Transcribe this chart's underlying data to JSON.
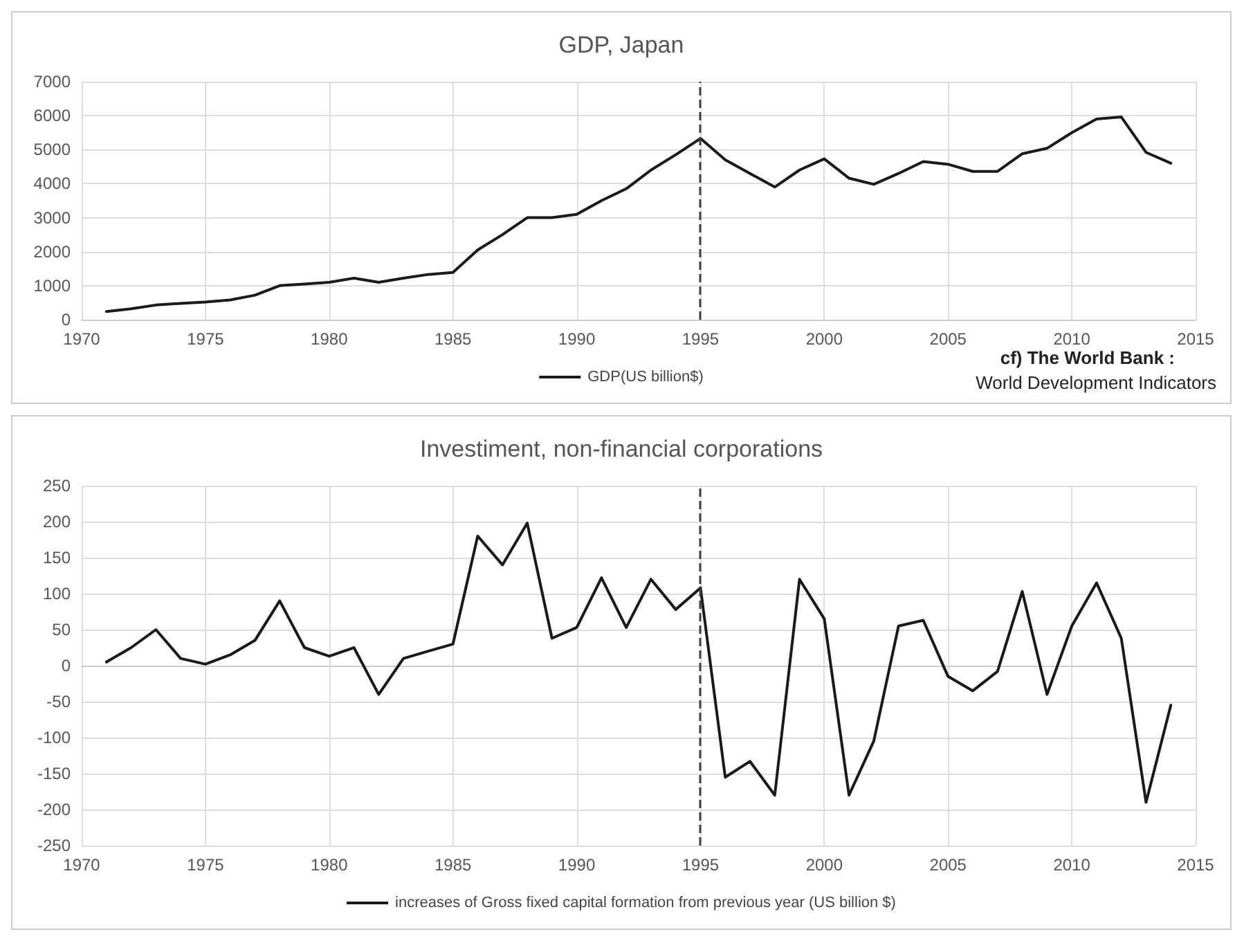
{
  "chart_data": [
    {
      "type": "line",
      "title": "GDP, Japan",
      "x": [
        1971,
        1972,
        1973,
        1974,
        1975,
        1976,
        1977,
        1978,
        1979,
        1980,
        1981,
        1982,
        1983,
        1984,
        1985,
        1986,
        1987,
        1988,
        1989,
        1990,
        1991,
        1992,
        1993,
        1994,
        1995,
        1996,
        1997,
        1998,
        1999,
        2000,
        2001,
        2002,
        2003,
        2004,
        2005,
        2006,
        2007,
        2008,
        2009,
        2010,
        2011,
        2012,
        2013,
        2014
      ],
      "series": [
        {
          "name": "GDP(US billion$)",
          "color": "#1a1a1a",
          "values": [
            240,
            320,
            430,
            480,
            520,
            580,
            720,
            1000,
            1050,
            1100,
            1220,
            1100,
            1220,
            1330,
            1390,
            2050,
            2500,
            3000,
            3000,
            3100,
            3500,
            3850,
            4400,
            4850,
            5330,
            4700,
            4300,
            3900,
            4400,
            4730,
            4160,
            3980,
            4300,
            4650,
            4570,
            4360,
            4360,
            4880,
            5040,
            5500,
            5900,
            5960,
            4920,
            4600
          ]
        }
      ],
      "xlim": [
        1970,
        2015
      ],
      "xticks": [
        1970,
        1975,
        1980,
        1985,
        1990,
        1995,
        2000,
        2005,
        2010,
        2015
      ],
      "ylim": [
        0,
        7000
      ],
      "yticks": [
        0,
        1000,
        2000,
        3000,
        4000,
        5000,
        6000,
        7000
      ],
      "grid": true,
      "legend": "bottom",
      "marker": "none",
      "line_style": "solid",
      "ref_lines": [
        {
          "axis": "x",
          "value": 1995,
          "color": "#404040",
          "line_style": "dashed"
        }
      ],
      "annotations": [
        "cf) The World Bank :",
        "World Development Indicators"
      ]
    },
    {
      "type": "line",
      "title": "Investiment, non-financial corporations",
      "x": [
        1971,
        1972,
        1973,
        1974,
        1975,
        1976,
        1977,
        1978,
        1979,
        1980,
        1981,
        1982,
        1983,
        1984,
        1985,
        1986,
        1987,
        1988,
        1989,
        1990,
        1991,
        1992,
        1993,
        1994,
        1995,
        1996,
        1997,
        1998,
        1999,
        2000,
        2001,
        2002,
        2003,
        2004,
        2005,
        2006,
        2007,
        2008,
        2009,
        2010,
        2011,
        2012,
        2013,
        2014
      ],
      "series": [
        {
          "name": "increases of Gross fixed capital formation from previous year (US billion $)",
          "color": "#1a1a1a",
          "values": [
            5,
            25,
            50,
            10,
            2,
            15,
            35,
            90,
            25,
            13,
            25,
            -40,
            10,
            20,
            30,
            180,
            140,
            198,
            38,
            53,
            122,
            53,
            120,
            78,
            108,
            -155,
            -133,
            -180,
            120,
            65,
            -180,
            -105,
            55,
            63,
            -15,
            -35,
            -8,
            103,
            -40,
            55,
            115,
            38,
            -190,
            -55
          ]
        }
      ],
      "xlim": [
        1970,
        2015
      ],
      "xticks": [
        1970,
        1975,
        1980,
        1985,
        1990,
        1995,
        2000,
        2005,
        2010,
        2015
      ],
      "ylim": [
        -250,
        250
      ],
      "yticks": [
        -250,
        -200,
        -150,
        -100,
        -50,
        0,
        50,
        100,
        150,
        200,
        250
      ],
      "grid": true,
      "legend": "bottom",
      "marker": "none",
      "line_style": "solid",
      "ref_lines": [
        {
          "axis": "x",
          "value": 1995,
          "color": "#404040",
          "line_style": "dashed"
        }
      ]
    }
  ]
}
